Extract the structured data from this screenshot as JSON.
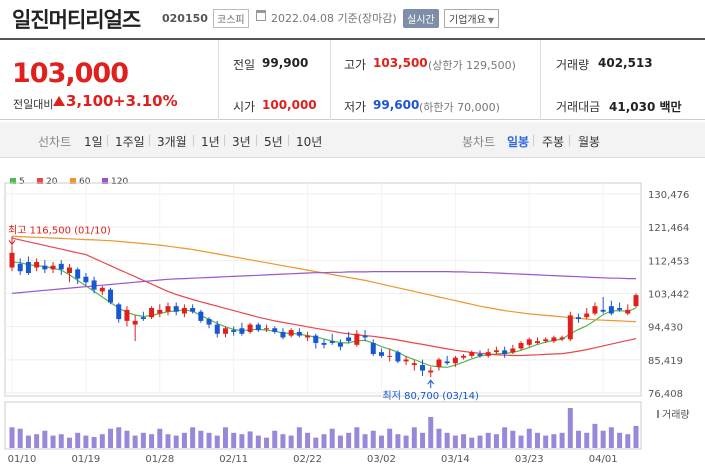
{
  "header": {
    "stock_name": "일진머티리얼즈",
    "stock_code": "020150",
    "market": "코스피",
    "date_text": "2022.04.08 기준(장마감)",
    "realtime_label": "실시간",
    "company_info_label": "기업개요"
  },
  "price": {
    "current": "103,000",
    "change_label": "전일대비",
    "change_value": "3,100",
    "change_rate": "+3.10%",
    "up_color": "#e0201c",
    "down_color": "#1956d3"
  },
  "stats": {
    "prev_close_label": "전일",
    "prev_close": "99,900",
    "open_label": "시가",
    "open": "100,000",
    "high_label": "고가",
    "high": "103,500",
    "upper_limit": "(상한가 129,500)",
    "low_label": "저가",
    "low": "99,600",
    "lower_limit": "(하한가 70,000)",
    "volume_label": "거래량",
    "volume": "402,513",
    "amount_label": "거래대금",
    "amount": "41,030 백만"
  },
  "tabs": {
    "line_chart": "선차트",
    "line_periods": [
      "1일",
      "1주일",
      "3개월",
      "1년",
      "3년",
      "5년",
      "10년"
    ],
    "candle_chart": "봉차트",
    "candle_periods": [
      "일봉",
      "주봉",
      "월봉"
    ],
    "active": "일봉"
  },
  "legend": [
    {
      "label": "5",
      "color": "#52b84a"
    },
    {
      "label": "20",
      "color": "#e8474a"
    },
    {
      "label": "60",
      "color": "#f0952c"
    },
    {
      "label": "120",
      "color": "#9a55cf"
    }
  ],
  "chart_data": {
    "type": "candlestick",
    "y_ticks": [
      "130,476",
      "121,464",
      "112,453",
      "103,442",
      "94,430",
      "85,419",
      "76,408"
    ],
    "ylim": [
      76408,
      130476
    ],
    "x_ticks": [
      "01/10",
      "01/19",
      "01/28",
      "02/11",
      "02/22",
      "03/02",
      "03/14",
      "03/23",
      "04/01"
    ],
    "volume_label": "거래량",
    "max_annotation": "최고 116,500 (01/10)",
    "min_annotation": "최저 80,700 (03/14)",
    "candles": [
      {
        "o": 110500,
        "c": 114500,
        "h": 116500,
        "l": 109500
      },
      {
        "o": 111500,
        "c": 109500,
        "h": 113000,
        "l": 108500
      },
      {
        "o": 112000,
        "c": 109000,
        "h": 113500,
        "l": 108500
      },
      {
        "o": 110500,
        "c": 112000,
        "h": 113000,
        "l": 109500
      },
      {
        "o": 111000,
        "c": 110000,
        "h": 112500,
        "l": 109000
      },
      {
        "o": 110000,
        "c": 111000,
        "h": 112000,
        "l": 109000
      },
      {
        "o": 111500,
        "c": 110000,
        "h": 112500,
        "l": 108500
      },
      {
        "o": 109000,
        "c": 110500,
        "h": 111500,
        "l": 106500
      },
      {
        "o": 110000,
        "c": 107500,
        "h": 110500,
        "l": 106000
      },
      {
        "o": 108000,
        "c": 106500,
        "h": 109000,
        "l": 105500
      },
      {
        "o": 107000,
        "c": 104500,
        "h": 108000,
        "l": 103500
      },
      {
        "o": 104000,
        "c": 105000,
        "h": 105500,
        "l": 103000
      },
      {
        "o": 104500,
        "c": 101000,
        "h": 105000,
        "l": 100500
      },
      {
        "o": 100500,
        "c": 96500,
        "h": 101000,
        "l": 95500
      },
      {
        "o": 96000,
        "c": 99000,
        "h": 100000,
        "l": 94500
      },
      {
        "o": 95000,
        "c": 96000,
        "h": 97500,
        "l": 90500
      },
      {
        "o": 97000,
        "c": 96500,
        "h": 98500,
        "l": 96000
      },
      {
        "o": 97000,
        "c": 99500,
        "h": 100000,
        "l": 96500
      },
      {
        "o": 98000,
        "c": 99000,
        "h": 100500,
        "l": 97000
      },
      {
        "o": 98500,
        "c": 100000,
        "h": 101000,
        "l": 97500
      },
      {
        "o": 100000,
        "c": 98500,
        "h": 101000,
        "l": 97500
      },
      {
        "o": 98000,
        "c": 99500,
        "h": 100500,
        "l": 97000
      },
      {
        "o": 99500,
        "c": 98500,
        "h": 100500,
        "l": 98000
      },
      {
        "o": 98500,
        "c": 96000,
        "h": 99000,
        "l": 95500
      },
      {
        "o": 96500,
        "c": 95000,
        "h": 97000,
        "l": 94000
      },
      {
        "o": 95000,
        "c": 92500,
        "h": 96000,
        "l": 91500
      },
      {
        "o": 92500,
        "c": 94000,
        "h": 94500,
        "l": 91500
      },
      {
        "o": 93500,
        "c": 93000,
        "h": 94500,
        "l": 92000
      },
      {
        "o": 94000,
        "c": 92500,
        "h": 95500,
        "l": 92000
      },
      {
        "o": 93000,
        "c": 95000,
        "h": 95500,
        "l": 92500
      },
      {
        "o": 95000,
        "c": 93500,
        "h": 95500,
        "l": 93000
      },
      {
        "o": 94000,
        "c": 94000,
        "h": 95000,
        "l": 93000
      },
      {
        "o": 94000,
        "c": 93000,
        "h": 94500,
        "l": 92500
      },
      {
        "o": 93000,
        "c": 91500,
        "h": 94000,
        "l": 91000
      },
      {
        "o": 92000,
        "c": 93500,
        "h": 94000,
        "l": 91500
      },
      {
        "o": 93000,
        "c": 92000,
        "h": 94000,
        "l": 91500
      },
      {
        "o": 91500,
        "c": 92000,
        "h": 93000,
        "l": 90500
      },
      {
        "o": 92000,
        "c": 90000,
        "h": 92500,
        "l": 88500
      },
      {
        "o": 90000,
        "c": 89500,
        "h": 91000,
        "l": 88500
      },
      {
        "o": 90500,
        "c": 90000,
        "h": 92500,
        "l": 89500
      },
      {
        "o": 90000,
        "c": 89000,
        "h": 91000,
        "l": 88000
      },
      {
        "o": 91500,
        "c": 90500,
        "h": 93000,
        "l": 90000
      },
      {
        "o": 89500,
        "c": 92500,
        "h": 93500,
        "l": 89000
      },
      {
        "o": 92000,
        "c": 91500,
        "h": 93500,
        "l": 90500
      },
      {
        "o": 90000,
        "c": 87000,
        "h": 91000,
        "l": 86500
      },
      {
        "o": 87500,
        "c": 86500,
        "h": 88500,
        "l": 86000
      },
      {
        "o": 86500,
        "c": 86500,
        "h": 88500,
        "l": 85000
      },
      {
        "o": 87500,
        "c": 85000,
        "h": 88000,
        "l": 84500
      },
      {
        "o": 85000,
        "c": 85500,
        "h": 86500,
        "l": 84000
      },
      {
        "o": 84000,
        "c": 84500,
        "h": 85500,
        "l": 82500
      },
      {
        "o": 84000,
        "c": 82500,
        "h": 85500,
        "l": 81000
      },
      {
        "o": 82000,
        "c": 82500,
        "h": 83500,
        "l": 80700
      },
      {
        "o": 83500,
        "c": 85500,
        "h": 86000,
        "l": 82500
      },
      {
        "o": 85000,
        "c": 84500,
        "h": 86500,
        "l": 84000
      },
      {
        "o": 84500,
        "c": 86000,
        "h": 86500,
        "l": 83500
      },
      {
        "o": 86000,
        "c": 86500,
        "h": 87000,
        "l": 85500
      },
      {
        "o": 86500,
        "c": 87500,
        "h": 88000,
        "l": 86000
      },
      {
        "o": 87000,
        "c": 86500,
        "h": 88000,
        "l": 86000
      },
      {
        "o": 86500,
        "c": 87500,
        "h": 88500,
        "l": 86000
      },
      {
        "o": 87500,
        "c": 88000,
        "h": 89000,
        "l": 87000
      },
      {
        "o": 88000,
        "c": 87000,
        "h": 89000,
        "l": 86000
      },
      {
        "o": 87500,
        "c": 88500,
        "h": 89500,
        "l": 87000
      },
      {
        "o": 88500,
        "c": 90000,
        "h": 90500,
        "l": 88000
      },
      {
        "o": 89500,
        "c": 91000,
        "h": 91500,
        "l": 89000
      },
      {
        "o": 90000,
        "c": 90500,
        "h": 91500,
        "l": 89500
      },
      {
        "o": 90500,
        "c": 91000,
        "h": 91500,
        "l": 90000
      },
      {
        "o": 90500,
        "c": 91500,
        "h": 92000,
        "l": 90000
      },
      {
        "o": 91000,
        "c": 91500,
        "h": 92000,
        "l": 90500
      },
      {
        "o": 91000,
        "c": 97500,
        "h": 98500,
        "l": 90500
      },
      {
        "o": 97000,
        "c": 96500,
        "h": 98000,
        "l": 95500
      },
      {
        "o": 97000,
        "c": 98000,
        "h": 99500,
        "l": 96500
      },
      {
        "o": 98000,
        "c": 100000,
        "h": 101000,
        "l": 97500
      },
      {
        "o": 99000,
        "c": 98500,
        "h": 102500,
        "l": 98000
      },
      {
        "o": 100000,
        "c": 98000,
        "h": 101500,
        "l": 97500
      },
      {
        "o": 99500,
        "c": 99000,
        "h": 101000,
        "l": 98500
      },
      {
        "o": 98000,
        "c": 99000,
        "h": 100500,
        "l": 97500
      },
      {
        "o": 100000,
        "c": 103000,
        "h": 103500,
        "l": 99600
      }
    ],
    "volumes": [
      30,
      28,
      18,
      20,
      25,
      18,
      20,
      15,
      22,
      18,
      16,
      20,
      28,
      30,
      25,
      18,
      22,
      20,
      28,
      20,
      18,
      22,
      30,
      25,
      22,
      18,
      30,
      22,
      20,
      24,
      18,
      15,
      25,
      20,
      18,
      30,
      22,
      15,
      20,
      28,
      18,
      22,
      30,
      20,
      25,
      18,
      28,
      20,
      18,
      30,
      22,
      45,
      28,
      22,
      18,
      20,
      15,
      18,
      22,
      20,
      30,
      25,
      18,
      28,
      22,
      18,
      20,
      22,
      58,
      25,
      22,
      35,
      25,
      30,
      22,
      20,
      32
    ],
    "ma5": [
      112000,
      111800,
      111300,
      111000,
      110800,
      110300,
      109800,
      108500,
      107000,
      105500,
      104000,
      102500,
      101000,
      99500,
      98300,
      97600,
      97200,
      97500,
      98000,
      98500,
      98700,
      99000,
      98600,
      97500,
      96400,
      95300,
      94400,
      93700,
      93300,
      93600,
      93700,
      93500,
      93200,
      92700,
      92600,
      92400,
      92000,
      91600,
      91100,
      90500,
      90100,
      90000,
      90600,
      90700,
      90000,
      89000,
      88300,
      87500,
      86300,
      85500,
      84600,
      83800,
      83500,
      83400,
      84000,
      84800,
      85700,
      86400,
      86800,
      87000,
      87200,
      87400,
      88000,
      88800,
      89600,
      90200,
      90700,
      91000,
      92500,
      93700,
      94700,
      96100,
      97700,
      98700,
      98800,
      98600,
      99500
    ],
    "ma20": [
      118500,
      118000,
      117500,
      117000,
      116500,
      116000,
      115500,
      115000,
      114500,
      114000,
      113000,
      112000,
      111000,
      110000,
      109000,
      108000,
      107000,
      106000,
      105000,
      104000,
      103200,
      102500,
      101800,
      101200,
      100600,
      100000,
      99400,
      98800,
      98200,
      97600,
      97000,
      96500,
      96000,
      95600,
      95200,
      94800,
      94400,
      94000,
      93600,
      93200,
      92800,
      92500,
      92200,
      92000,
      91800,
      91500,
      91200,
      90800,
      90400,
      90000,
      89600,
      89200,
      88800,
      88400,
      88000,
      87700,
      87400,
      87200,
      87000,
      86800,
      86700,
      86600,
      86600,
      86700,
      86800,
      86900,
      87000,
      87100,
      87400,
      87800,
      88200,
      88700,
      89200,
      89700,
      90200,
      90700,
      91200
    ],
    "ma60": [
      119000,
      118900,
      118800,
      118700,
      118600,
      118500,
      118400,
      118300,
      118200,
      118100,
      118000,
      117900,
      117800,
      117600,
      117400,
      117200,
      117000,
      116800,
      116600,
      116300,
      116000,
      115700,
      115400,
      115000,
      114600,
      114200,
      113800,
      113400,
      113000,
      112600,
      112200,
      111800,
      111400,
      111000,
      110600,
      110200,
      109800,
      109400,
      109000,
      108600,
      108200,
      107800,
      107400,
      107000,
      106500,
      106000,
      105500,
      105000,
      104500,
      104000,
      103500,
      103000,
      102500,
      102000,
      101500,
      101000,
      100500,
      100000,
      99600,
      99200,
      98800,
      98500,
      98200,
      97900,
      97700,
      97500,
      97300,
      97100,
      96900,
      96700,
      96500,
      96300,
      96200,
      96100,
      96000,
      95900,
      95800
    ],
    "ma120": [
      103500,
      103700,
      103900,
      104100,
      104300,
      104500,
      104700,
      104900,
      105100,
      105300,
      105500,
      105700,
      105900,
      106100,
      106300,
      106500,
      106700,
      106900,
      107100,
      107300,
      107400,
      107500,
      107600,
      107700,
      107800,
      107900,
      108000,
      108100,
      108200,
      108300,
      108400,
      108500,
      108600,
      108700,
      108800,
      108900,
      109000,
      109100,
      109100,
      109200,
      109200,
      109300,
      109300,
      109300,
      109400,
      109400,
      109400,
      109400,
      109400,
      109400,
      109400,
      109400,
      109400,
      109400,
      109300,
      109300,
      109200,
      109200,
      109100,
      109000,
      108900,
      108800,
      108700,
      108600,
      108500,
      108400,
      108300,
      108200,
      108100,
      108000,
      107900,
      107800,
      107700,
      107600,
      107600,
      107500,
      107500
    ]
  }
}
